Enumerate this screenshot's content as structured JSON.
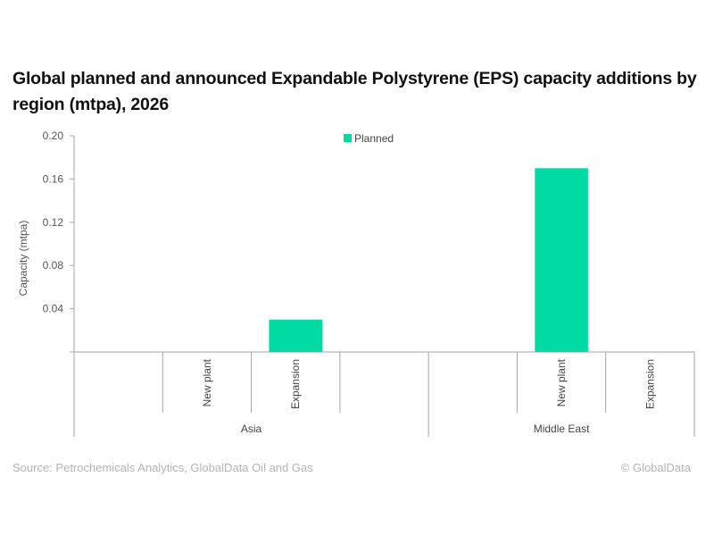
{
  "title": "Global planned and announced Expandable Polystyrene (EPS) capacity additions by region (mtpa), 2026",
  "footer": {
    "source": "Source: Petrochemicals Analytics, GlobalData Oil and Gas",
    "credit": "© GlobalData"
  },
  "chart_data": {
    "type": "bar",
    "title": "Global planned and announced Expandable Polystyrene (EPS) capacity additions by region (mtpa), 2026",
    "xlabel": "",
    "ylabel": "Capacity (mtpa)",
    "ylim": [
      0,
      0.2
    ],
    "yticks": [
      0.04,
      0.08,
      0.12,
      0.16,
      0.2
    ],
    "ytick_labels": [
      "0.04",
      "0.08",
      "0.12",
      "0.16",
      "0.20"
    ],
    "grid": false,
    "legend_position": "top-center",
    "bar_color": "#00dba3",
    "groups": [
      {
        "name": "Asia",
        "categories": [
          "",
          "New plant",
          "Expansion",
          ""
        ]
      },
      {
        "name": "Middle East",
        "categories": [
          "",
          "New plant",
          "Expansion"
        ]
      }
    ],
    "categories": [
      "Asia - (blank)",
      "Asia - New plant",
      "Asia - Expansion",
      "Asia - (blank)",
      "Middle East - (blank)",
      "Middle East - New plant",
      "Middle East - Expansion"
    ],
    "series": [
      {
        "name": "Planned",
        "color": "#00dba3",
        "values": [
          0,
          0,
          0.03,
          0,
          0,
          0.17,
          0
        ]
      }
    ]
  }
}
